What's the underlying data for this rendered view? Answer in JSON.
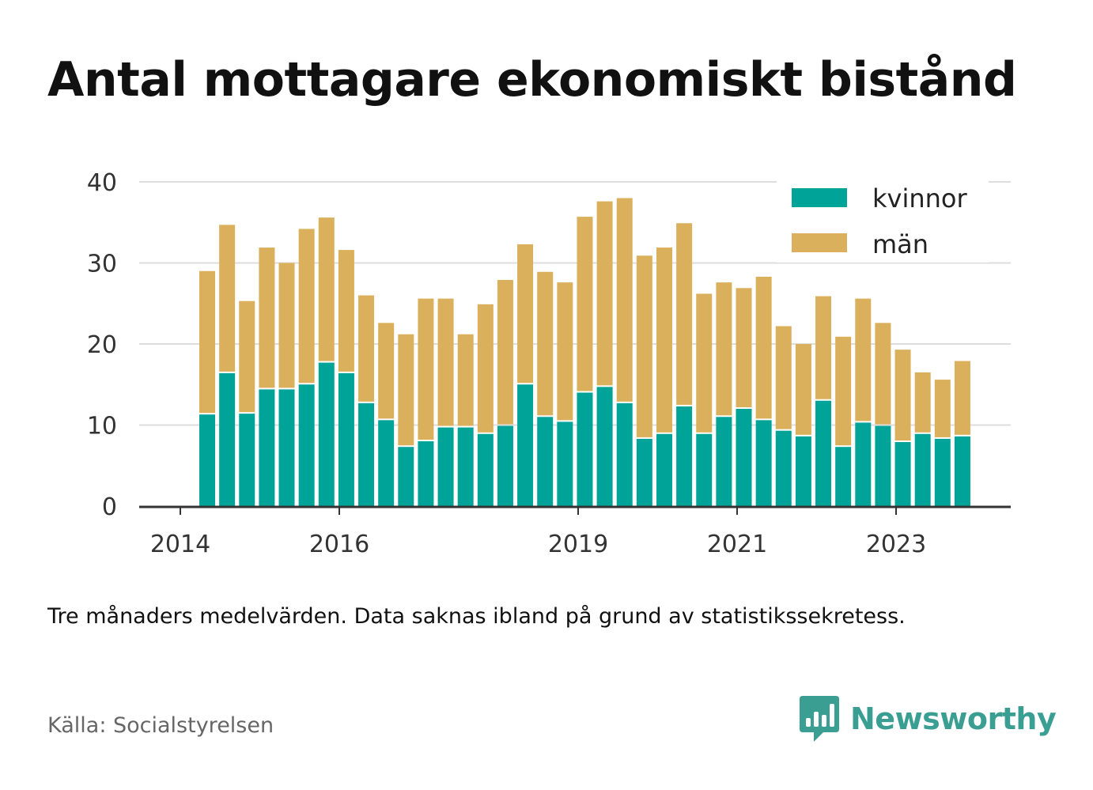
{
  "title": "Antal mottagare ekonomiskt bistånd",
  "note": "Tre månaders medelvärden. Data saknas ibland på grund av statistikssekretess.",
  "source": "Källa: Socialstyrelsen",
  "brand": "Newsworthy",
  "colors": {
    "kvinnor": "#00a398",
    "man": "#dbb05c",
    "grid": "#dddddd",
    "axis": "#333333",
    "brand": "#3a9f92"
  },
  "chart_data": {
    "type": "bar",
    "stacked": true,
    "x_tick_labels": [
      "2014",
      "2016",
      "2019",
      "2021",
      "2023"
    ],
    "y_tick_labels": [
      "0",
      "10",
      "20",
      "30",
      "40"
    ],
    "ylim": [
      0,
      40
    ],
    "grid": true,
    "legend_position": "top-right",
    "series": [
      {
        "name": "kvinnor",
        "values": [
          11.3,
          16.4,
          11.4,
          14.4,
          14.4,
          15.0,
          17.7,
          16.4,
          12.7,
          10.6,
          7.3,
          8.0,
          9.7,
          9.7,
          8.9,
          9.9,
          15.0,
          11.0,
          10.4,
          14.0,
          14.7,
          12.7,
          8.3,
          8.9,
          12.3,
          8.9,
          11.0,
          12.0,
          10.6,
          9.3,
          8.6,
          13.0,
          7.3,
          10.3,
          9.9,
          7.9,
          8.9,
          8.3,
          8.6
        ]
      },
      {
        "name": "män",
        "values": [
          17.7,
          18.3,
          13.9,
          17.5,
          15.6,
          19.2,
          17.9,
          15.2,
          13.3,
          12.0,
          13.9,
          17.6,
          15.9,
          11.5,
          16.0,
          18.0,
          17.3,
          17.9,
          17.2,
          21.7,
          22.9,
          25.3,
          22.6,
          23.0,
          22.6,
          17.3,
          16.6,
          14.9,
          17.7,
          12.9,
          11.4,
          12.9,
          13.6,
          15.3,
          12.7,
          11.4,
          7.6,
          7.3,
          9.3
        ]
      }
    ]
  }
}
